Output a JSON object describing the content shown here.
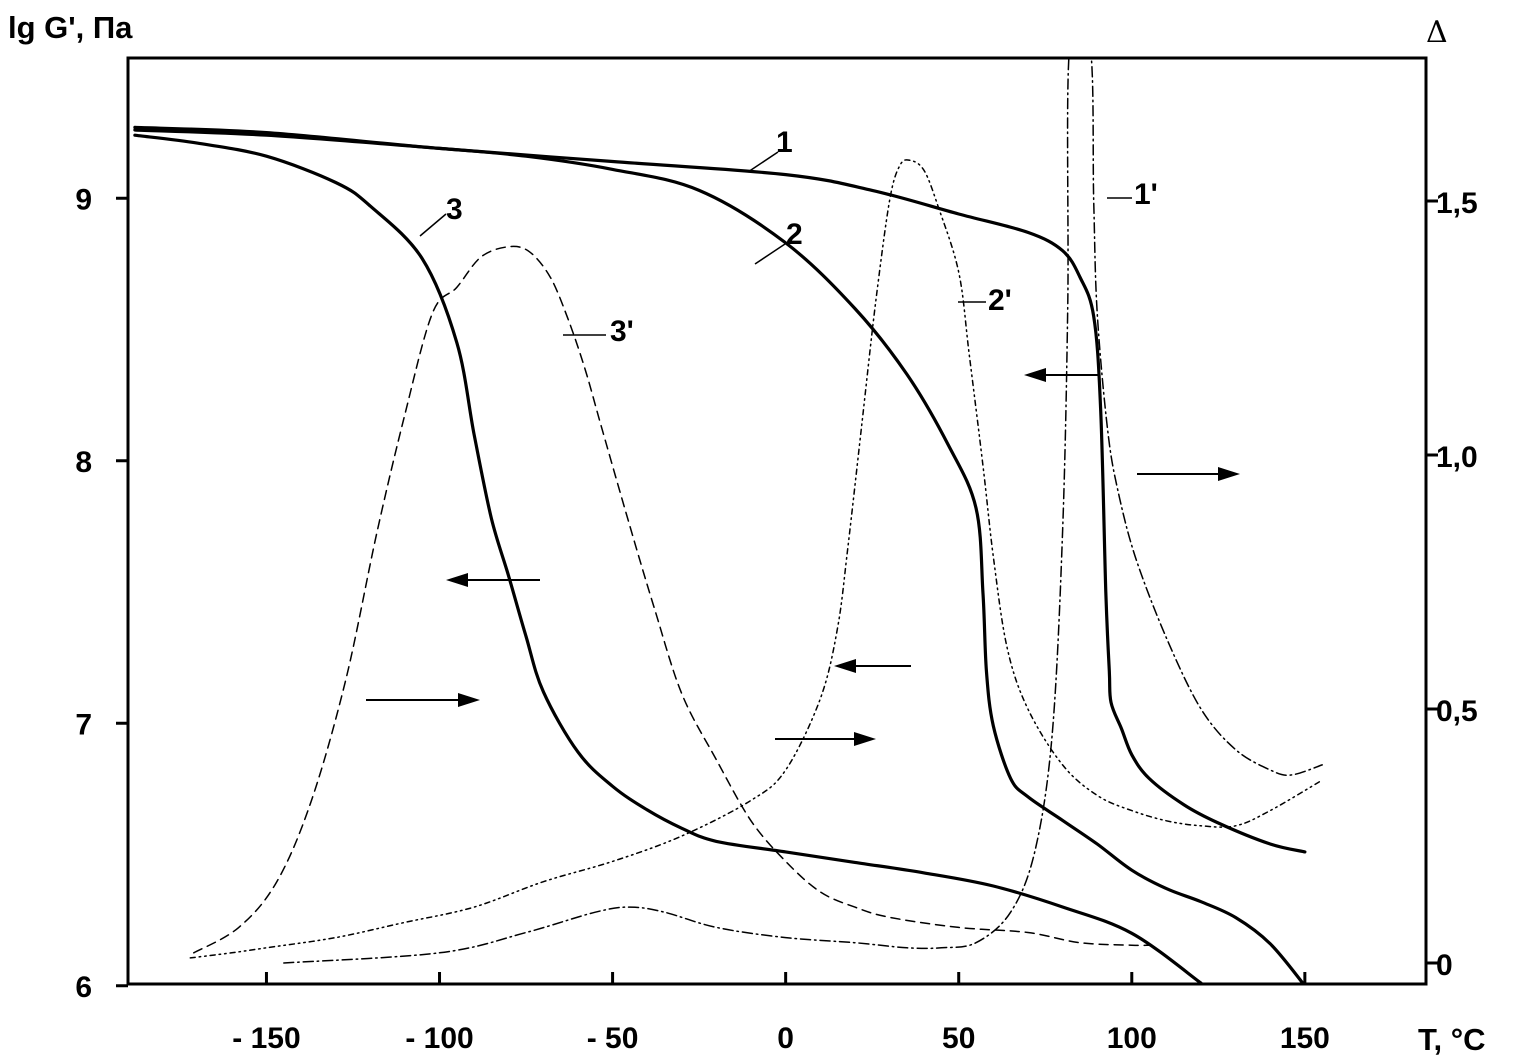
{
  "chart_data": {
    "type": "line",
    "title": "",
    "xlabel": "T, °C",
    "ylabel_left": "lg G', Па",
    "ylabel_right": "Δ",
    "xlim": [
      -190,
      185
    ],
    "ylim_left": [
      6,
      9.5
    ],
    "ylim_right": [
      0,
      1.76
    ],
    "x_ticks": [
      -150,
      -100,
      -50,
      0,
      50,
      100,
      150
    ],
    "x_tick_labels": [
      "- 150",
      "- 100",
      "- 50",
      "0",
      "50",
      "100",
      "150"
    ],
    "y_left_ticks": [
      6,
      7,
      8,
      9
    ],
    "y_left_tick_labels": [
      "6",
      "7",
      "8",
      "9"
    ],
    "y_right_ticks": [
      0,
      0.5,
      1.0,
      1.5
    ],
    "y_right_tick_labels": [
      "0",
      "0,5",
      "1,0",
      "1,5"
    ],
    "grid": false,
    "legend": "none",
    "series": [
      {
        "name": "1",
        "axis": "left",
        "style": "solid",
        "points": [
          [
            -188,
            9.27
          ],
          [
            -150,
            9.25
          ],
          [
            -100,
            9.19
          ],
          [
            -50,
            9.14
          ],
          [
            0,
            9.09
          ],
          [
            25,
            9.03
          ],
          [
            50,
            8.94
          ],
          [
            70,
            8.87
          ],
          [
            80,
            8.8
          ],
          [
            85,
            8.7
          ],
          [
            89,
            8.55
          ],
          [
            91,
            8.2
          ],
          [
            92.5,
            7.5
          ],
          [
            93.5,
            7.2
          ],
          [
            94,
            7.08
          ],
          [
            97,
            6.98
          ],
          [
            100,
            6.88
          ],
          [
            105,
            6.79
          ],
          [
            115,
            6.69
          ],
          [
            125,
            6.62
          ],
          [
            140,
            6.54
          ],
          [
            150,
            6.51
          ]
        ]
      },
      {
        "name": "2",
        "axis": "left",
        "style": "solid",
        "points": [
          [
            -188,
            9.26
          ],
          [
            -150,
            9.24
          ],
          [
            -100,
            9.19
          ],
          [
            -75,
            9.16
          ],
          [
            -50,
            9.11
          ],
          [
            -25,
            9.03
          ],
          [
            0,
            8.83
          ],
          [
            20,
            8.58
          ],
          [
            35,
            8.33
          ],
          [
            47,
            8.06
          ],
          [
            55,
            7.82
          ],
          [
            57,
            7.5
          ],
          [
            58,
            7.2
          ],
          [
            60,
            6.99
          ],
          [
            65,
            6.79
          ],
          [
            70,
            6.72
          ],
          [
            80,
            6.63
          ],
          [
            90,
            6.54
          ],
          [
            100,
            6.44
          ],
          [
            110,
            6.37
          ],
          [
            120,
            6.32
          ],
          [
            130,
            6.26
          ],
          [
            140,
            6.16
          ],
          [
            150,
            6.0
          ]
        ]
      },
      {
        "name": "3",
        "axis": "left",
        "style": "solid",
        "points": [
          [
            -188,
            9.24
          ],
          [
            -170,
            9.21
          ],
          [
            -150,
            9.16
          ],
          [
            -130,
            9.06
          ],
          [
            -120,
            8.97
          ],
          [
            -105,
            8.77
          ],
          [
            -95,
            8.45
          ],
          [
            -90,
            8.1
          ],
          [
            -85,
            7.78
          ],
          [
            -80,
            7.56
          ],
          [
            -75,
            7.33
          ],
          [
            -70,
            7.12
          ],
          [
            -60,
            6.89
          ],
          [
            -50,
            6.76
          ],
          [
            -40,
            6.67
          ],
          [
            -30,
            6.6
          ],
          [
            -20,
            6.55
          ],
          [
            0,
            6.51
          ],
          [
            20,
            6.47
          ],
          [
            40,
            6.43
          ],
          [
            60,
            6.38
          ],
          [
            80,
            6.3
          ],
          [
            100,
            6.2
          ],
          [
            120,
            6.01
          ]
        ]
      },
      {
        "name": "1'",
        "axis": "right",
        "style": "dashdot",
        "points": [
          [
            -145,
            0.0
          ],
          [
            -100,
            0.02
          ],
          [
            -75,
            0.06
          ],
          [
            -55,
            0.1
          ],
          [
            -45,
            0.11
          ],
          [
            -35,
            0.1
          ],
          [
            -20,
            0.07
          ],
          [
            0,
            0.05
          ],
          [
            20,
            0.04
          ],
          [
            35,
            0.03
          ],
          [
            45,
            0.03
          ],
          [
            55,
            0.04
          ],
          [
            65,
            0.1
          ],
          [
            72,
            0.22
          ],
          [
            77,
            0.45
          ],
          [
            80,
            0.85
          ],
          [
            81.5,
            1.3
          ],
          [
            82,
            1.8
          ],
          [
            88,
            1.8
          ],
          [
            89,
            1.5
          ],
          [
            90,
            1.28
          ],
          [
            93,
            1.05
          ],
          [
            96,
            0.93
          ],
          [
            101,
            0.8
          ],
          [
            110,
            0.64
          ],
          [
            120,
            0.5
          ],
          [
            130,
            0.42
          ],
          [
            140,
            0.38
          ],
          [
            146,
            0.37
          ],
          [
            155,
            0.39
          ]
        ]
      },
      {
        "name": "2'",
        "axis": "right",
        "style": "dashdotdot",
        "points": [
          [
            -172,
            0.01
          ],
          [
            -160,
            0.02
          ],
          [
            -150,
            0.03
          ],
          [
            -130,
            0.05
          ],
          [
            -110,
            0.08
          ],
          [
            -90,
            0.11
          ],
          [
            -70,
            0.16
          ],
          [
            -50,
            0.2
          ],
          [
            -30,
            0.25
          ],
          [
            -10,
            0.32
          ],
          [
            0,
            0.38
          ],
          [
            10,
            0.52
          ],
          [
            15,
            0.66
          ],
          [
            18,
            0.82
          ],
          [
            22,
            1.06
          ],
          [
            26,
            1.3
          ],
          [
            30,
            1.5
          ],
          [
            33,
            1.57
          ],
          [
            36,
            1.58
          ],
          [
            40,
            1.56
          ],
          [
            44,
            1.49
          ],
          [
            50,
            1.36
          ],
          [
            53,
            1.2
          ],
          [
            57,
            0.98
          ],
          [
            60,
            0.8
          ],
          [
            64,
            0.62
          ],
          [
            70,
            0.5
          ],
          [
            80,
            0.39
          ],
          [
            90,
            0.33
          ],
          [
            100,
            0.3
          ],
          [
            110,
            0.28
          ],
          [
            120,
            0.27
          ],
          [
            130,
            0.27
          ],
          [
            140,
            0.3
          ],
          [
            155,
            0.36
          ]
        ]
      },
      {
        "name": "3'",
        "axis": "right",
        "style": "dashed",
        "points": [
          [
            -171,
            0.02
          ],
          [
            -158,
            0.07
          ],
          [
            -147,
            0.16
          ],
          [
            -137,
            0.32
          ],
          [
            -127,
            0.56
          ],
          [
            -118,
            0.85
          ],
          [
            -110,
            1.08
          ],
          [
            -102,
            1.28
          ],
          [
            -95,
            1.33
          ],
          [
            -88,
            1.39
          ],
          [
            -80,
            1.41
          ],
          [
            -74,
            1.4
          ],
          [
            -68,
            1.35
          ],
          [
            -63,
            1.27
          ],
          [
            -58,
            1.17
          ],
          [
            -53,
            1.05
          ],
          [
            -45,
            0.86
          ],
          [
            -38,
            0.7
          ],
          [
            -30,
            0.53
          ],
          [
            -20,
            0.4
          ],
          [
            -10,
            0.28
          ],
          [
            0,
            0.2
          ],
          [
            10,
            0.14
          ],
          [
            20,
            0.11
          ],
          [
            30,
            0.09
          ],
          [
            50,
            0.07
          ],
          [
            70,
            0.06
          ],
          [
            85,
            0.04
          ],
          [
            100,
            0.035
          ],
          [
            105,
            0.035
          ]
        ]
      }
    ],
    "curve_labels": [
      "1",
      "2",
      "3",
      "1'",
      "2'",
      "3'"
    ]
  }
}
